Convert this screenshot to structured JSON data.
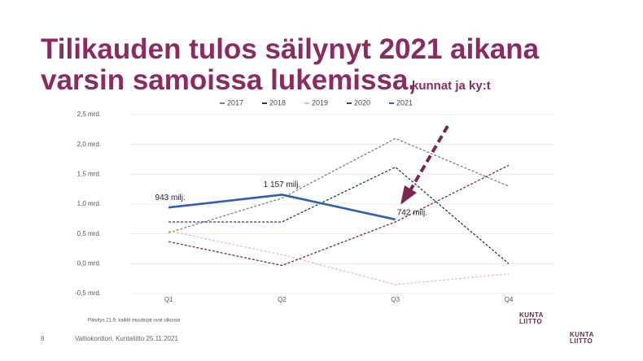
{
  "chart_data": {
    "type": "line",
    "title": "Tilikauden tulos säilynyt 2021 aikana varsin samoissa lukemissa,",
    "title_line1": "Tilikauden tulos säilynyt 2021 aikana",
    "title_line2": "varsin samoissa lukemissa,",
    "subtitle": "kunnat ja ky:t",
    "categories": [
      "Q1",
      "Q2",
      "Q3",
      "Q4"
    ],
    "series": [
      {
        "name": "2017",
        "color": "#7f7f7f",
        "dashed": true,
        "values": [
          0.52,
          1.1,
          2.1,
          1.3
        ]
      },
      {
        "name": "2018",
        "color": "#1f3a5f",
        "dashed": true,
        "values": [
          0.7,
          0.7,
          1.62,
          0.0
        ]
      },
      {
        "name": "2019",
        "color": "#f0b7c8",
        "dashed": true,
        "values": [
          0.55,
          0.15,
          -0.35,
          -0.17
        ]
      },
      {
        "name": "2020",
        "color": "#7b2550",
        "dashed": true,
        "values": [
          0.37,
          -0.03,
          0.7,
          1.65
        ]
      },
      {
        "name": "2021",
        "color": "#2f5fb5",
        "dashed": false,
        "values": [
          0.943,
          1.157,
          0.742,
          null
        ],
        "value_labels": [
          "943 milj.",
          "1 157 milj.",
          "742 milj.",
          null
        ]
      }
    ],
    "ylim": [
      -0.5,
      2.5
    ],
    "yticks": [
      {
        "value": -0.5,
        "label": "-0,5 mrd."
      },
      {
        "value": 0,
        "label": "0,0 mrd."
      },
      {
        "value": 0.5,
        "label": "0,5 mrd."
      },
      {
        "value": 1,
        "label": "1,0 mrd."
      },
      {
        "value": 1.5,
        "label": "1,5 mrd."
      },
      {
        "value": 2,
        "label": "2,0 mrd."
      },
      {
        "value": 2.5,
        "label": "2,5 mrd."
      }
    ],
    "grid": true,
    "legend": "top",
    "note": "Päivitys 21.9: kaikki muuttujat ovat ulkoisia"
  },
  "footer": {
    "page": "8",
    "source": "Valtiokonttori, Kuntaliitto 25.11.2021",
    "logo_top": "KUNTA",
    "logo_bottom": "LIITTO"
  }
}
